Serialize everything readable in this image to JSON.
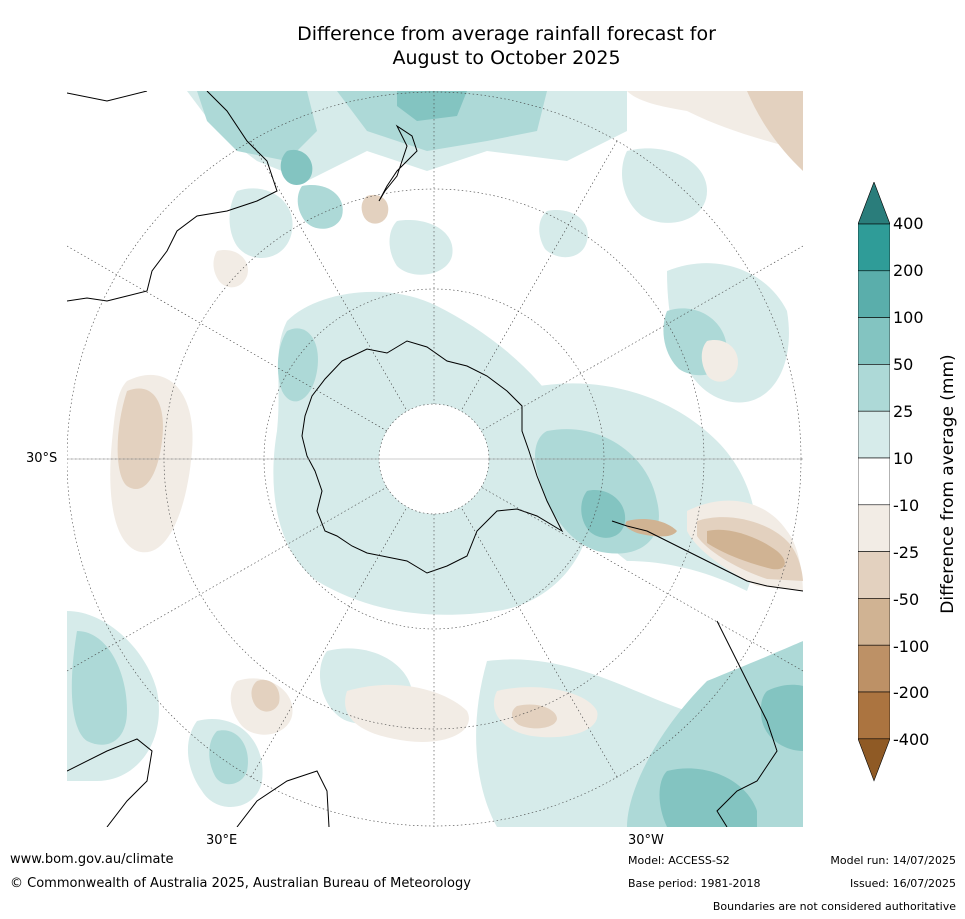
{
  "title": {
    "line1": "Difference from average rainfall forecast for",
    "line2": "August to October 2025"
  },
  "map": {
    "projection": "south-polar",
    "lat_labels": [
      "30°S"
    ],
    "lon_labels": [
      "30°E",
      "30°W"
    ]
  },
  "legend": {
    "label": "Difference from average (mm)",
    "ticks": [
      "400",
      "200",
      "100",
      "50",
      "25",
      "10",
      "-10",
      "-25",
      "-50",
      "-100",
      "-200",
      "-400"
    ],
    "colors": [
      "#2a7d7b",
      "#2f9c98",
      "#5aaeab",
      "#83c4c1",
      "#add9d7",
      "#d6ebea",
      "#ffffff",
      "#f2ece5",
      "#e3d1bf",
      "#d0b393",
      "#bd9166",
      "#ab7440",
      "#8f5a25"
    ],
    "extend": "both"
  },
  "footer": {
    "website": "www.bom.gov.au/climate",
    "copyright": "© Commonwealth of Australia 2025, Australian Bureau of Meteorology",
    "model": "Model: ACCESS-S2",
    "base_period": "Base period: 1981-2018",
    "model_run": "Model run: 14/07/2025",
    "issued": "Issued: 16/07/2025",
    "disclaimer": "Boundaries are not considered authoritative"
  }
}
